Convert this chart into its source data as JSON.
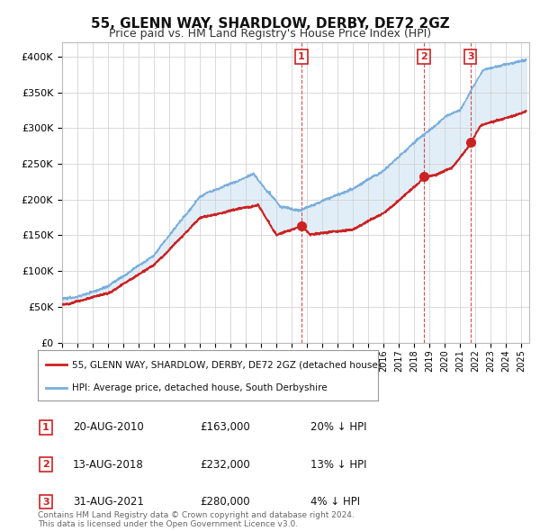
{
  "title": "55, GLENN WAY, SHARDLOW, DERBY, DE72 2GZ",
  "subtitle": "Price paid vs. HM Land Registry's House Price Index (HPI)",
  "legend_property": "55, GLENN WAY, SHARDLOW, DERBY, DE72 2GZ (detached house)",
  "legend_hpi": "HPI: Average price, detached house, South Derbyshire",
  "transactions": [
    {
      "num": 1,
      "date": "20-AUG-2010",
      "price": 163000,
      "hpi_pct": "20% ↓ HPI",
      "year": 2010.63
    },
    {
      "num": 2,
      "date": "13-AUG-2018",
      "price": 232000,
      "hpi_pct": "13% ↓ HPI",
      "year": 2018.62
    },
    {
      "num": 3,
      "date": "31-AUG-2021",
      "price": 280000,
      "hpi_pct": "4% ↓ HPI",
      "year": 2021.67
    }
  ],
  "copyright": "Contains HM Land Registry data © Crown copyright and database right 2024.\nThis data is licensed under the Open Government Licence v3.0.",
  "hpi_color": "#7aaedc",
  "property_color": "#cc2222",
  "dashed_line_color": "#cc2222",
  "fill_color": "#daeaf7",
  "ylim": [
    0,
    420000
  ],
  "xlim_start": 1995.0,
  "xlim_end": 2025.5,
  "background_color": "#ffffff",
  "grid_color": "#cccccc"
}
